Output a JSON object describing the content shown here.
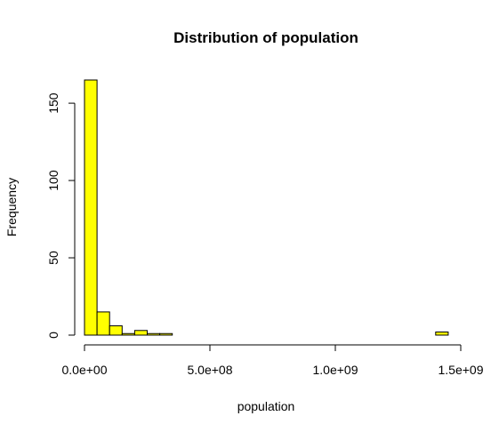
{
  "chart_data": {
    "type": "bar",
    "title": "Distribution of population",
    "xlabel": "population",
    "ylabel": "Frequency",
    "bin_width": 50000000,
    "bins": [
      {
        "x0": 0,
        "x1": 50000000,
        "count": 165
      },
      {
        "x0": 50000000,
        "x1": 100000000,
        "count": 15
      },
      {
        "x0": 100000000,
        "x1": 150000000,
        "count": 6
      },
      {
        "x0": 150000000,
        "x1": 200000000,
        "count": 1
      },
      {
        "x0": 200000000,
        "x1": 250000000,
        "count": 3
      },
      {
        "x0": 250000000,
        "x1": 300000000,
        "count": 1
      },
      {
        "x0": 300000000,
        "x1": 350000000,
        "count": 1
      },
      {
        "x0": 350000000,
        "x1": 400000000,
        "count": 0
      },
      {
        "x0": 400000000,
        "x1": 450000000,
        "count": 0
      },
      {
        "x0": 450000000,
        "x1": 500000000,
        "count": 0
      },
      {
        "x0": 500000000,
        "x1": 550000000,
        "count": 0
      },
      {
        "x0": 550000000,
        "x1": 600000000,
        "count": 0
      },
      {
        "x0": 600000000,
        "x1": 650000000,
        "count": 0
      },
      {
        "x0": 650000000,
        "x1": 700000000,
        "count": 0
      },
      {
        "x0": 700000000,
        "x1": 750000000,
        "count": 0
      },
      {
        "x0": 750000000,
        "x1": 800000000,
        "count": 0
      },
      {
        "x0": 800000000,
        "x1": 850000000,
        "count": 0
      },
      {
        "x0": 850000000,
        "x1": 900000000,
        "count": 0
      },
      {
        "x0": 900000000,
        "x1": 950000000,
        "count": 0
      },
      {
        "x0": 950000000,
        "x1": 1000000000,
        "count": 0
      },
      {
        "x0": 1000000000,
        "x1": 1050000000,
        "count": 0
      },
      {
        "x0": 1050000000,
        "x1": 1100000000,
        "count": 0
      },
      {
        "x0": 1100000000,
        "x1": 1150000000,
        "count": 0
      },
      {
        "x0": 1150000000,
        "x1": 1200000000,
        "count": 0
      },
      {
        "x0": 1200000000,
        "x1": 1250000000,
        "count": 0
      },
      {
        "x0": 1250000000,
        "x1": 1300000000,
        "count": 0
      },
      {
        "x0": 1300000000,
        "x1": 1350000000,
        "count": 0
      },
      {
        "x0": 1350000000,
        "x1": 1400000000,
        "count": 0
      },
      {
        "x0": 1400000000,
        "x1": 1450000000,
        "count": 2
      }
    ],
    "xlim": [
      0,
      1500000000
    ],
    "ylim": [
      0,
      165
    ],
    "x_ticks": [
      {
        "value": 0,
        "label": "0.0e+00"
      },
      {
        "value": 500000000,
        "label": "5.0e+08"
      },
      {
        "value": 1000000000,
        "label": "1.0e+09"
      },
      {
        "value": 1500000000,
        "label": "1.5e+09"
      }
    ],
    "y_ticks": [
      {
        "value": 0,
        "label": "0"
      },
      {
        "value": 50,
        "label": "50"
      },
      {
        "value": 100,
        "label": "100"
      },
      {
        "value": 150,
        "label": "150"
      }
    ],
    "bar_color": "#ffff00",
    "grid": false,
    "legend": "none"
  }
}
